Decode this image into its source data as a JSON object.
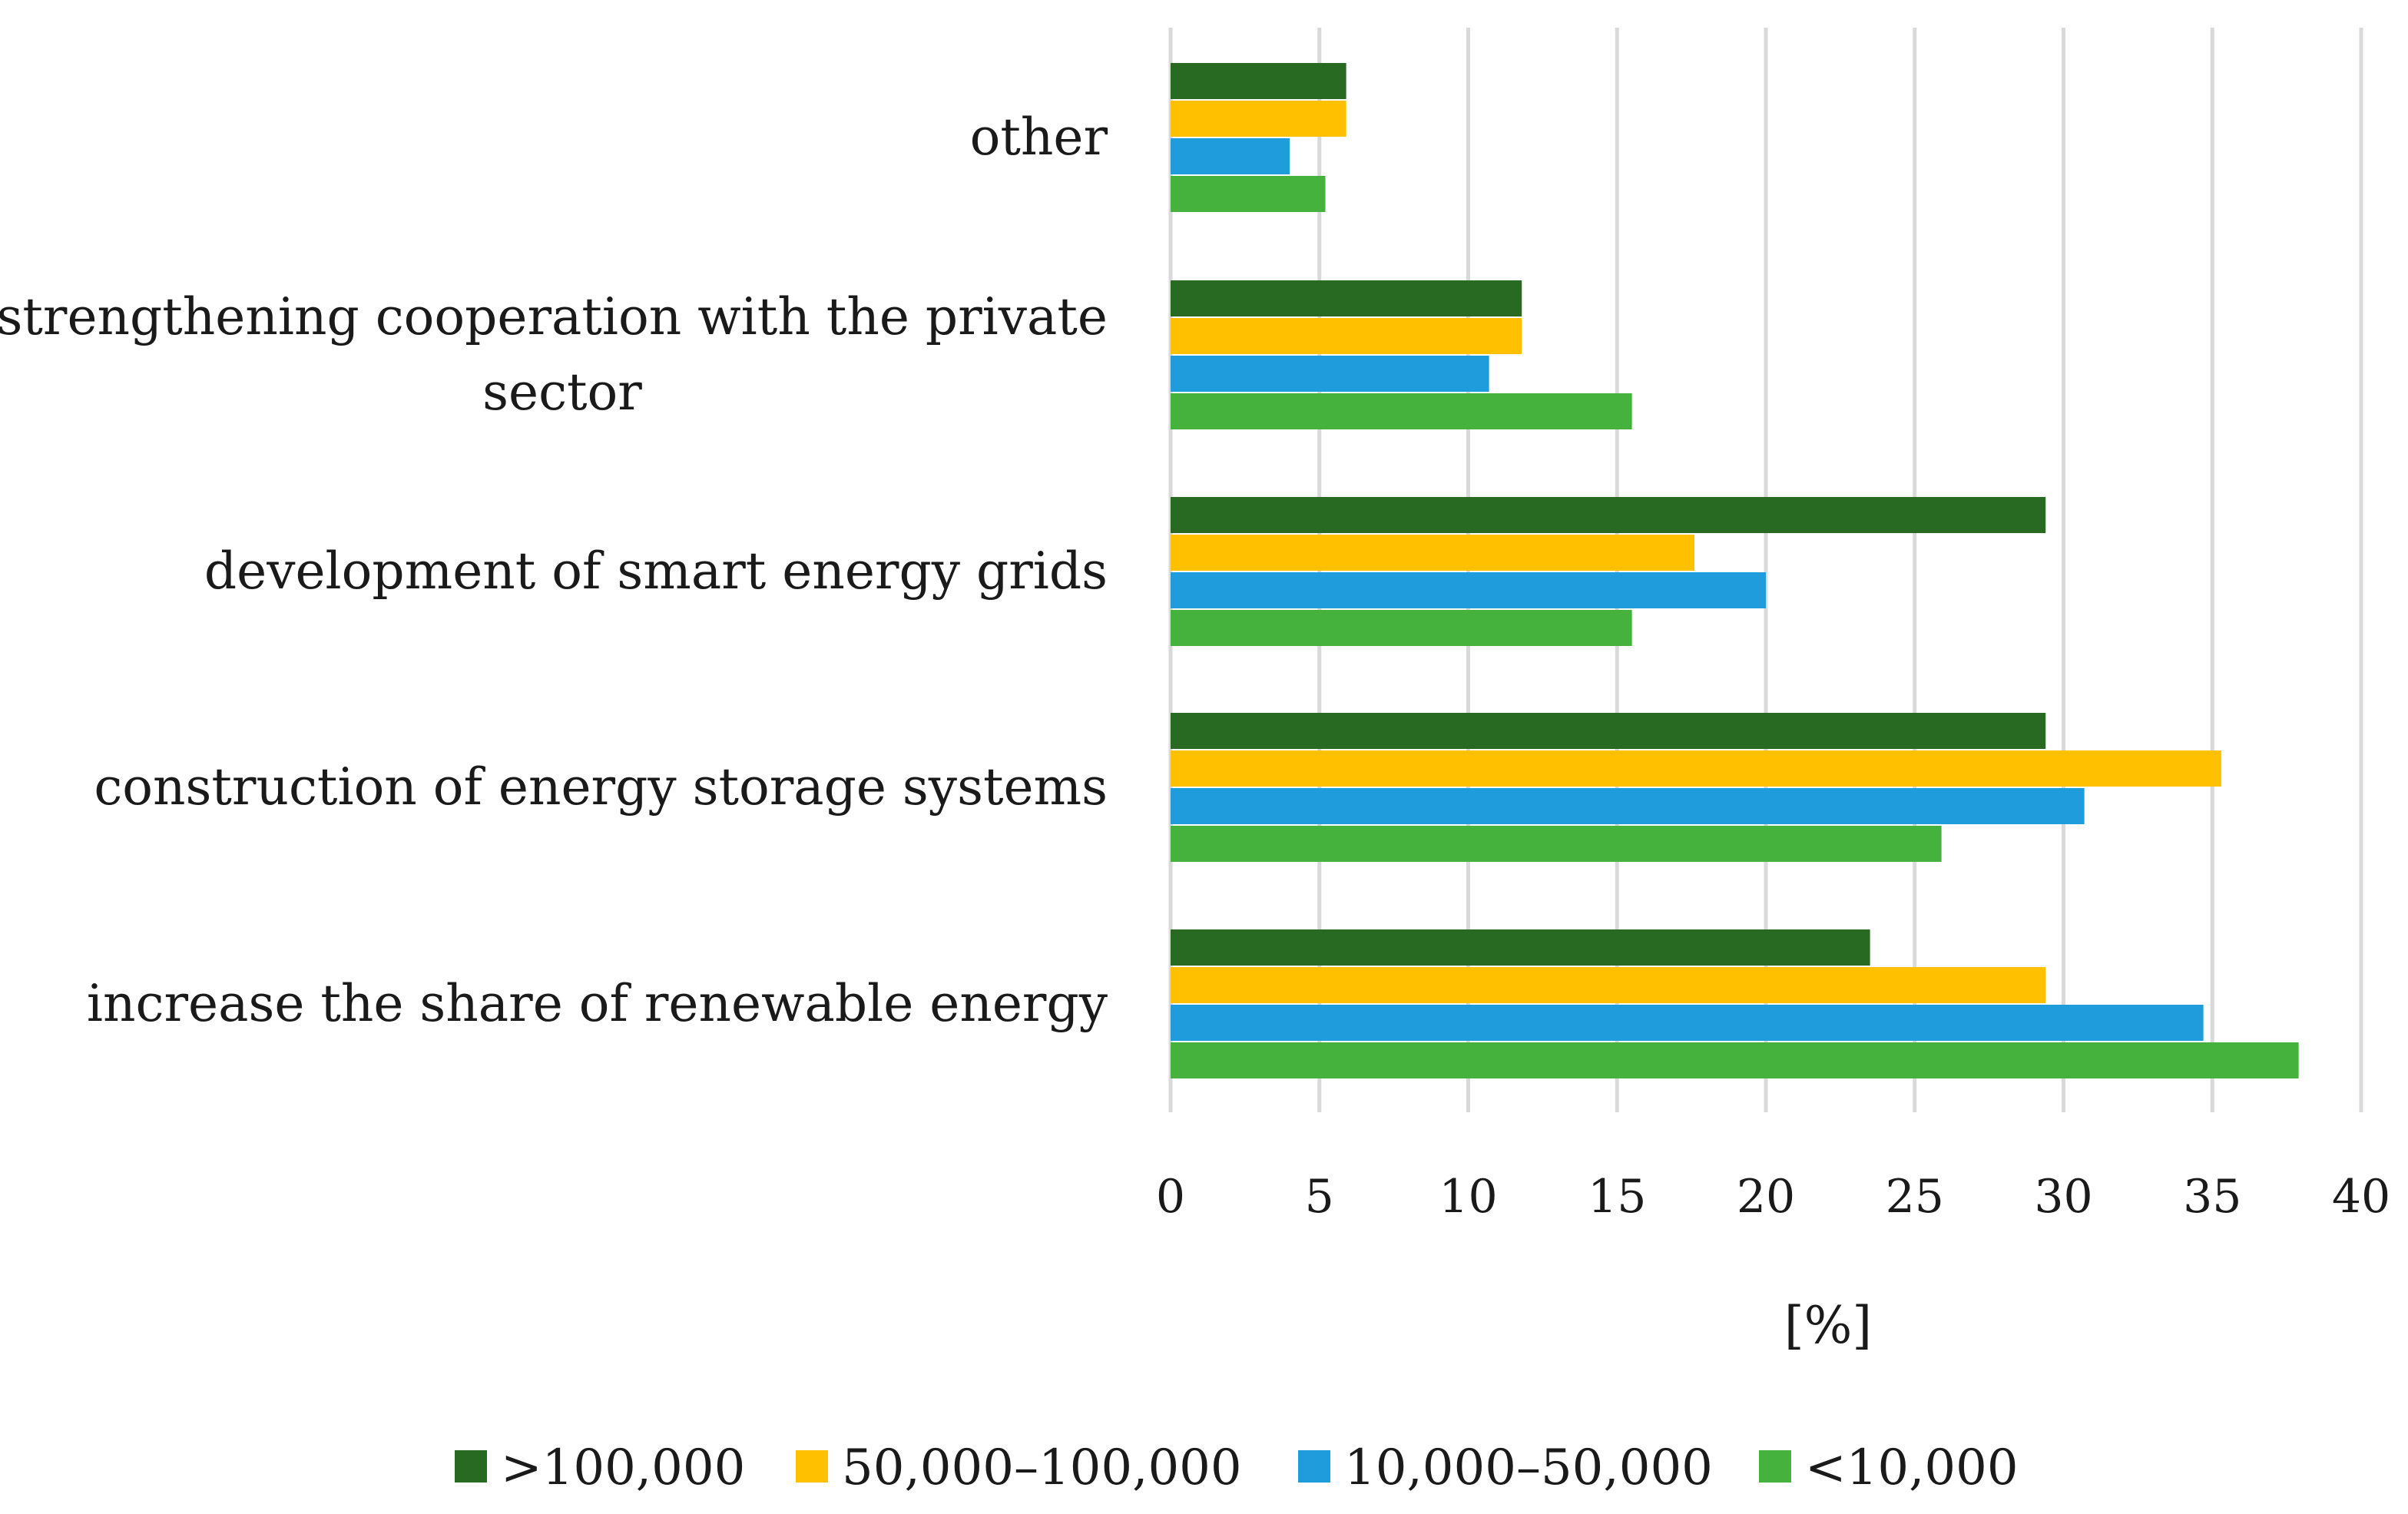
{
  "chart_data": {
    "type": "bar",
    "orientation": "horizontal",
    "title": "",
    "xlabel": "[%]",
    "ylabel": "",
    "xlim": [
      0,
      40
    ],
    "xticks": [
      0,
      5,
      10,
      15,
      20,
      25,
      30,
      35,
      40
    ],
    "grid": true,
    "legend_position": "bottom",
    "categories": [
      [
        "other"
      ],
      [
        "strengthening cooperation with the private",
        "sector"
      ],
      [
        "development of smart energy grids"
      ],
      [
        "construction of energy storage systems"
      ],
      [
        "increase the share of renewable energy"
      ]
    ],
    "series": [
      {
        "name": ">100,000",
        "color": "#286A22",
        "values": [
          5.9,
          11.8,
          29.4,
          29.4,
          23.5
        ]
      },
      {
        "name": "50,000–100,000",
        "color": "#FFC000",
        "values": [
          5.9,
          11.8,
          17.6,
          35.3,
          29.4
        ]
      },
      {
        "name": "10,000–50,000",
        "color": "#1F9CDB",
        "values": [
          4.0,
          10.7,
          20.0,
          30.7,
          34.7
        ]
      },
      {
        "name": "<10,000",
        "color": "#44B23C",
        "values": [
          5.2,
          15.5,
          15.5,
          25.9,
          37.9
        ]
      }
    ]
  }
}
